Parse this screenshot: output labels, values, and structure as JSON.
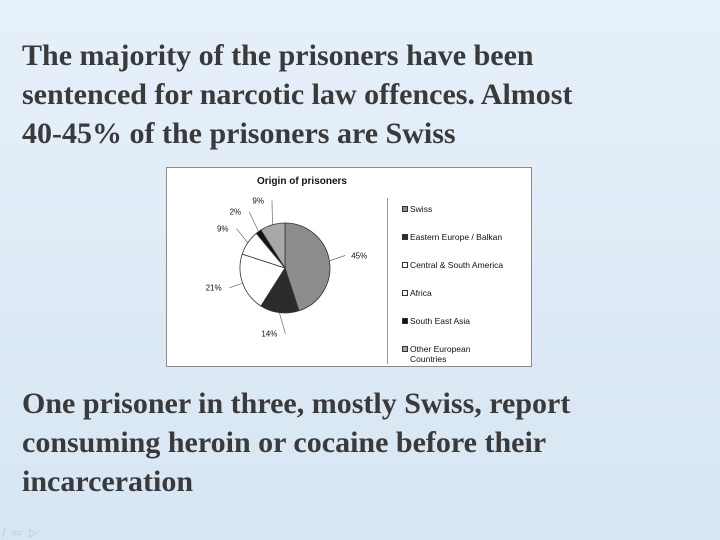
{
  "slide": {
    "heading_text": "The majority of the prisoners have been\nsentenced for narcotic law offences. Almost\n40-45%  of the prisoners are Swiss",
    "footer_text": "One prisoner in three, mostly Swiss, report\nconsuming heroin or cocaine before their\nincarceration",
    "nav_icons": "/ ▭ ▷"
  },
  "chart_data": {
    "type": "pie",
    "title": "Origin of prisoners",
    "legend_position": "right",
    "slices": [
      {
        "label": "Swiss",
        "value": 45,
        "display": "45%",
        "color": "#8c8c8c"
      },
      {
        "label": "Eastern Europe / Balkan",
        "value": 14,
        "display": "14%",
        "color": "#2b2b2b"
      },
      {
        "label": "Central & South America",
        "value": 21,
        "display": "21%",
        "color": "#ffffff"
      },
      {
        "label": "Africa",
        "value": 9,
        "display": "9%",
        "color": "#ffffff"
      },
      {
        "label": "South East Asia",
        "value": 2,
        "display": "2%",
        "color": "#111111"
      },
      {
        "label": "Other European\nCountries",
        "value": 9,
        "display": "9%",
        "color": "#a8a8a8"
      }
    ]
  }
}
